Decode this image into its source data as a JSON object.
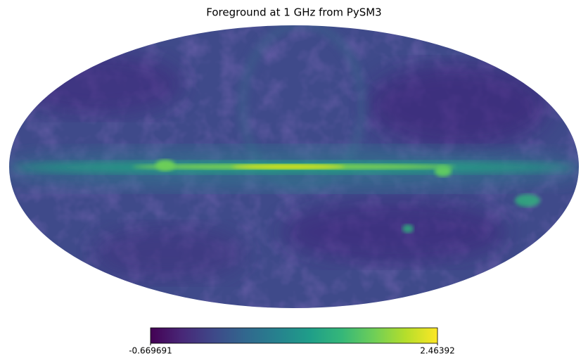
{
  "chart_data": {
    "type": "mollweide-map",
    "title": "Foreground at 1 GHz from PySM3",
    "clim": [
      -0.669691,
      2.46392
    ],
    "colormap": "viridis"
  }
}
